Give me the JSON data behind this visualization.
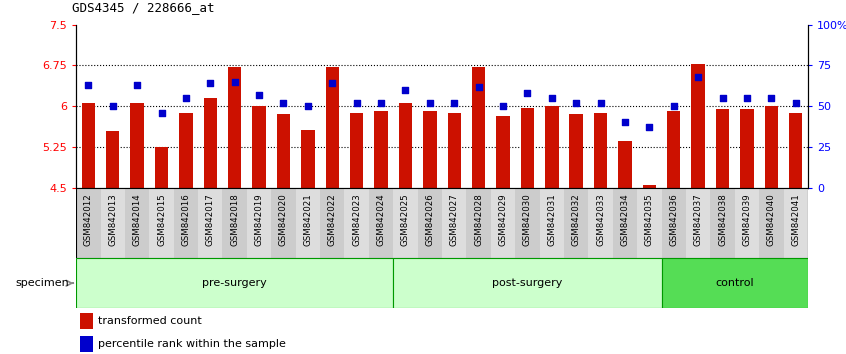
{
  "title": "GDS4345 / 228666_at",
  "samples": [
    "GSM842012",
    "GSM842013",
    "GSM842014",
    "GSM842015",
    "GSM842016",
    "GSM842017",
    "GSM842018",
    "GSM842019",
    "GSM842020",
    "GSM842021",
    "GSM842022",
    "GSM842023",
    "GSM842024",
    "GSM842025",
    "GSM842026",
    "GSM842027",
    "GSM842028",
    "GSM842029",
    "GSM842030",
    "GSM842031",
    "GSM842032",
    "GSM842033",
    "GSM842034",
    "GSM842035",
    "GSM842036",
    "GSM842037",
    "GSM842038",
    "GSM842039",
    "GSM842040",
    "GSM842041"
  ],
  "bar_values": [
    6.05,
    5.55,
    6.05,
    5.25,
    5.88,
    6.15,
    6.72,
    6.0,
    5.85,
    5.57,
    6.73,
    5.87,
    5.92,
    6.05,
    5.92,
    5.88,
    6.72,
    5.82,
    5.97,
    6.0,
    5.85,
    5.87,
    5.35,
    4.55,
    5.92,
    6.78,
    5.95,
    5.95,
    6.0,
    5.88
  ],
  "pct_values": [
    63,
    50,
    63,
    46,
    55,
    64,
    65,
    57,
    52,
    50,
    64,
    52,
    52,
    60,
    52,
    52,
    62,
    50,
    58,
    55,
    52,
    52,
    40,
    37,
    50,
    68,
    55,
    55,
    55,
    52
  ],
  "bar_color": "#cc1100",
  "dot_color": "#0000cc",
  "ylim_left": [
    4.5,
    7.5
  ],
  "ylim_right": [
    0,
    100
  ],
  "yticks_left": [
    4.5,
    5.25,
    6.0,
    6.75,
    7.5
  ],
  "ytick_labels_left": [
    "4.5",
    "5.25",
    "6",
    "6.75",
    "7.5"
  ],
  "yticks_right": [
    0,
    25,
    50,
    75,
    100
  ],
  "ytick_labels_right": [
    "0",
    "25",
    "50",
    "75",
    "100%"
  ],
  "hlines": [
    5.25,
    6.0,
    6.75
  ],
  "bar_width": 0.55,
  "group_defs": [
    {
      "label": "pre-surgery",
      "start": 0,
      "end": 13,
      "color": "#ccffcc"
    },
    {
      "label": "post-surgery",
      "start": 13,
      "end": 24,
      "color": "#ccffcc"
    },
    {
      "label": "control",
      "start": 24,
      "end": 30,
      "color": "#55dd55"
    }
  ],
  "xtick_bg_even": "#cccccc",
  "xtick_bg_odd": "#dddddd"
}
